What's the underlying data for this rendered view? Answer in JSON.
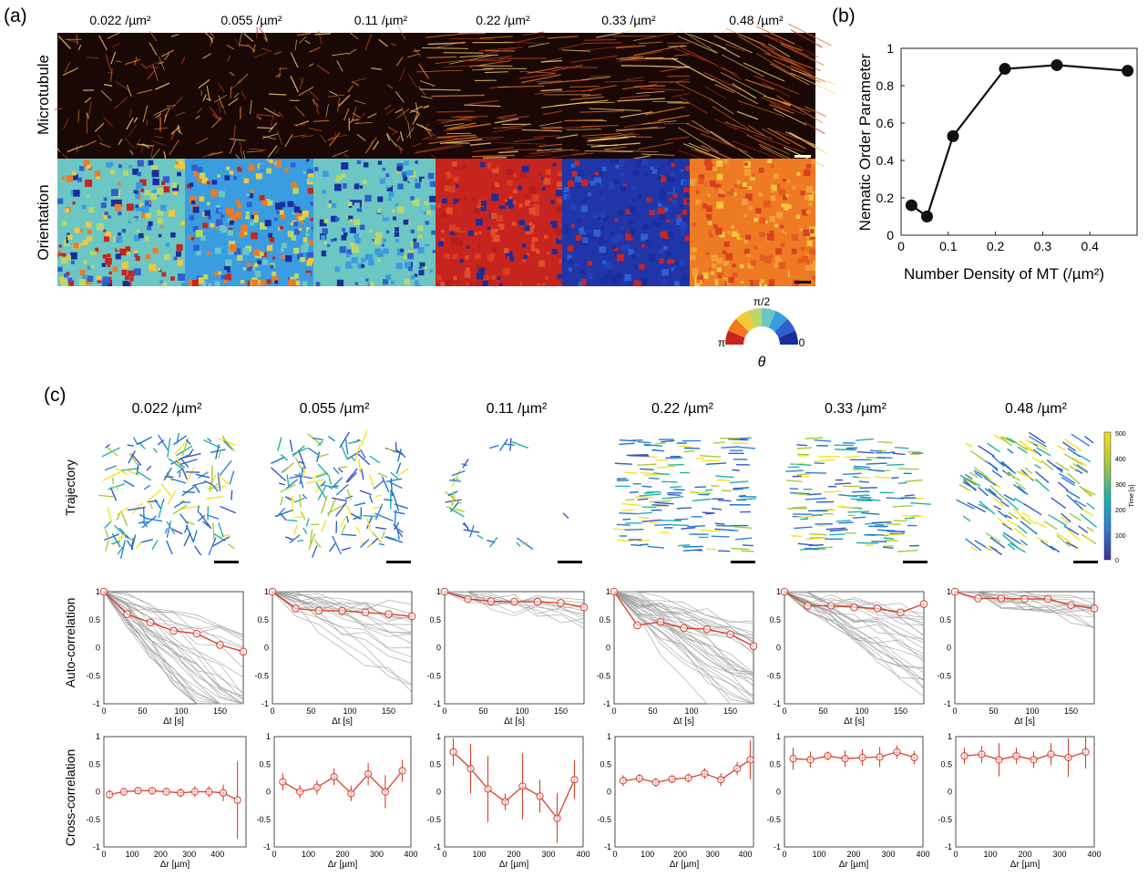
{
  "panel_labels": {
    "a": "(a)",
    "b": "(b)",
    "c": "(c)"
  },
  "densities": [
    "0.022 /µm²",
    "0.055 /µm²",
    "0.11 /µm²",
    "0.22 /µm²",
    "0.33 /µm²",
    "0.48 /µm²"
  ],
  "row_labels": {
    "microtubule": "Microtubule",
    "orientation": "Orientation",
    "trajectory": "Trajectory",
    "autocorr": "Auto-correlation",
    "crosscorr": "Cross-correlation"
  },
  "colorwheel": {
    "top": "π/2",
    "left": "π",
    "right": "0",
    "symbol": "θ"
  },
  "time_colorbar": {
    "label": "Time [s]",
    "ticks": [
      "500",
      "400",
      "300",
      "200",
      "100",
      "0"
    ]
  },
  "colors": {
    "marker": "#d9402b",
    "gray": "#9a9a9a",
    "line": "#111111"
  },
  "chart_data": [
    {
      "type": "line",
      "panel": "b",
      "xlabel": "Number Density of MT (/µm²)",
      "ylabel": "Nematic Order Parameter",
      "xlim": [
        0,
        0.5
      ],
      "ylim": [
        0,
        1
      ],
      "x": [
        0.022,
        0.055,
        0.11,
        0.22,
        0.33,
        0.48
      ],
      "y": [
        0.16,
        0.1,
        0.53,
        0.89,
        0.91,
        0.88
      ],
      "xticks": [
        "0",
        "0.1",
        "0.2",
        "0.3",
        "0.4"
      ],
      "yticks": [
        "0",
        "0.2",
        "0.4",
        "0.6",
        "0.8",
        "1"
      ]
    },
    {
      "type": "line",
      "panel": "c-auto",
      "xlabel": "Δt [s]",
      "ylim": [
        -1,
        1
      ],
      "yticks": [
        "1",
        "0.5",
        "0",
        "-0.5",
        "-1"
      ],
      "xticks": [
        "0",
        "50",
        "100",
        "150"
      ],
      "x": [
        0,
        30,
        60,
        90,
        120,
        150,
        180
      ],
      "series": [
        {
          "values": [
            1,
            0.6,
            0.45,
            0.3,
            0.25,
            0.05,
            -0.07
          ]
        },
        {
          "values": [
            1,
            0.7,
            0.66,
            0.66,
            0.63,
            0.6,
            0.56
          ]
        },
        {
          "values": [
            1,
            0.87,
            0.83,
            0.82,
            0.82,
            0.8,
            0.72
          ]
        },
        {
          "values": [
            1,
            0.4,
            0.46,
            0.35,
            0.33,
            0.24,
            0.03
          ]
        },
        {
          "values": [
            1,
            0.75,
            0.75,
            0.72,
            0.7,
            0.63,
            0.78
          ]
        },
        {
          "values": [
            1,
            0.88,
            0.88,
            0.87,
            0.87,
            0.76,
            0.7
          ]
        }
      ]
    },
    {
      "type": "line",
      "panel": "c-cross",
      "xlabel": "Δr [µm]",
      "ylim": [
        -1,
        1
      ],
      "yticks": [
        "1",
        "0.5",
        "0",
        "-0.5",
        "-1"
      ],
      "series": [
        {
          "xmax": 500,
          "xticks": [
            "0",
            "100",
            "200",
            "300",
            "400"
          ],
          "x": [
            20,
            70,
            120,
            170,
            220,
            270,
            320,
            370,
            420,
            470
          ],
          "values": [
            -0.05,
            0.0,
            0.02,
            0.02,
            0.0,
            -0.02,
            0.0,
            0.0,
            -0.02,
            -0.15
          ],
          "err": [
            0.08,
            0.07,
            0.06,
            0.07,
            0.07,
            0.08,
            0.1,
            0.1,
            0.15,
            0.7
          ]
        },
        {
          "xmax": 400,
          "xticks": [
            "0",
            "100",
            "200",
            "300",
            "400"
          ],
          "x": [
            25,
            75,
            125,
            175,
            225,
            275,
            325,
            375
          ],
          "values": [
            0.18,
            0.0,
            0.08,
            0.27,
            -0.03,
            0.32,
            0.0,
            0.38
          ],
          "err": [
            0.15,
            0.12,
            0.13,
            0.15,
            0.14,
            0.2,
            0.3,
            0.2
          ]
        },
        {
          "xmax": 400,
          "xticks": [
            "0",
            "100",
            "200",
            "300",
            "400"
          ],
          "x": [
            25,
            75,
            125,
            175,
            225,
            275,
            325,
            375
          ],
          "values": [
            0.72,
            0.42,
            0.05,
            -0.18,
            0.1,
            -0.08,
            -0.48,
            0.22
          ],
          "err": [
            0.25,
            0.45,
            0.6,
            0.15,
            0.6,
            0.3,
            0.45,
            0.35
          ]
        },
        {
          "xmax": 425,
          "xticks": [
            "0",
            "100",
            "200",
            "300",
            "400"
          ],
          "x": [
            25,
            75,
            125,
            175,
            225,
            275,
            325,
            375,
            415
          ],
          "values": [
            0.2,
            0.24,
            0.17,
            0.23,
            0.25,
            0.33,
            0.22,
            0.42,
            0.58
          ],
          "err": [
            0.1,
            0.08,
            0.08,
            0.07,
            0.08,
            0.1,
            0.12,
            0.12,
            0.35
          ]
        },
        {
          "xmax": 400,
          "xticks": [
            "0",
            "100",
            "200",
            "300",
            "400"
          ],
          "x": [
            25,
            75,
            125,
            175,
            225,
            275,
            325,
            375
          ],
          "values": [
            0.6,
            0.58,
            0.65,
            0.6,
            0.62,
            0.63,
            0.72,
            0.62
          ],
          "err": [
            0.2,
            0.15,
            0.08,
            0.15,
            0.15,
            0.18,
            0.12,
            0.12
          ]
        },
        {
          "xmax": 400,
          "xticks": [
            "0",
            "100",
            "200",
            "300",
            "400"
          ],
          "x": [
            25,
            75,
            125,
            175,
            225,
            275,
            325,
            375
          ],
          "values": [
            0.65,
            0.68,
            0.58,
            0.65,
            0.58,
            0.68,
            0.62,
            0.72
          ],
          "err": [
            0.15,
            0.15,
            0.3,
            0.15,
            0.15,
            0.2,
            0.35,
            0.3
          ]
        }
      ]
    }
  ]
}
